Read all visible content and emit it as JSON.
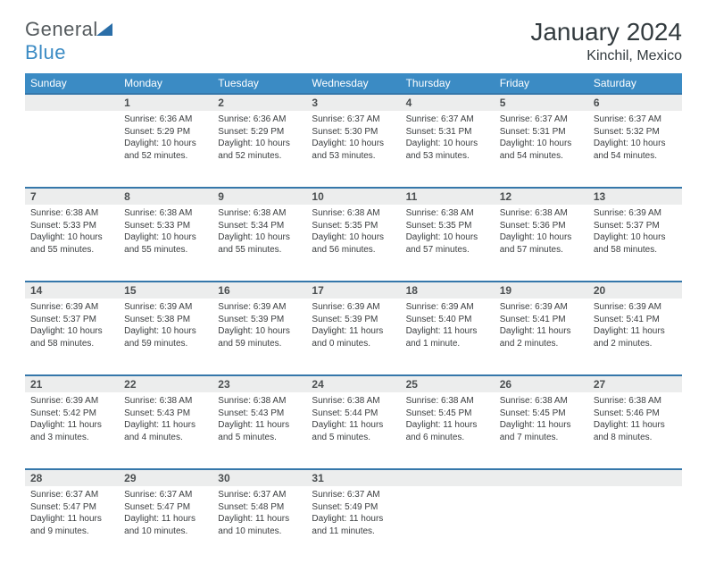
{
  "logo": {
    "text_gray": "General",
    "text_blue": "Blue"
  },
  "month_title": "January 2024",
  "location": "Kinchil, Mexico",
  "colors": {
    "header_bg": "#3b8bc4",
    "header_text": "#ffffff",
    "row_divider": "#3577aa",
    "daynum_bg": "#eceded",
    "text_dark": "#3a3d3f",
    "title_color": "#333b3f"
  },
  "day_headers": [
    "Sunday",
    "Monday",
    "Tuesday",
    "Wednesday",
    "Thursday",
    "Friday",
    "Saturday"
  ],
  "weeks": [
    [
      null,
      {
        "n": "1",
        "sr": "6:36 AM",
        "ss": "5:29 PM",
        "dl": "10 hours and 52 minutes."
      },
      {
        "n": "2",
        "sr": "6:36 AM",
        "ss": "5:29 PM",
        "dl": "10 hours and 52 minutes."
      },
      {
        "n": "3",
        "sr": "6:37 AM",
        "ss": "5:30 PM",
        "dl": "10 hours and 53 minutes."
      },
      {
        "n": "4",
        "sr": "6:37 AM",
        "ss": "5:31 PM",
        "dl": "10 hours and 53 minutes."
      },
      {
        "n": "5",
        "sr": "6:37 AM",
        "ss": "5:31 PM",
        "dl": "10 hours and 54 minutes."
      },
      {
        "n": "6",
        "sr": "6:37 AM",
        "ss": "5:32 PM",
        "dl": "10 hours and 54 minutes."
      }
    ],
    [
      {
        "n": "7",
        "sr": "6:38 AM",
        "ss": "5:33 PM",
        "dl": "10 hours and 55 minutes."
      },
      {
        "n": "8",
        "sr": "6:38 AM",
        "ss": "5:33 PM",
        "dl": "10 hours and 55 minutes."
      },
      {
        "n": "9",
        "sr": "6:38 AM",
        "ss": "5:34 PM",
        "dl": "10 hours and 55 minutes."
      },
      {
        "n": "10",
        "sr": "6:38 AM",
        "ss": "5:35 PM",
        "dl": "10 hours and 56 minutes."
      },
      {
        "n": "11",
        "sr": "6:38 AM",
        "ss": "5:35 PM",
        "dl": "10 hours and 57 minutes."
      },
      {
        "n": "12",
        "sr": "6:38 AM",
        "ss": "5:36 PM",
        "dl": "10 hours and 57 minutes."
      },
      {
        "n": "13",
        "sr": "6:39 AM",
        "ss": "5:37 PM",
        "dl": "10 hours and 58 minutes."
      }
    ],
    [
      {
        "n": "14",
        "sr": "6:39 AM",
        "ss": "5:37 PM",
        "dl": "10 hours and 58 minutes."
      },
      {
        "n": "15",
        "sr": "6:39 AM",
        "ss": "5:38 PM",
        "dl": "10 hours and 59 minutes."
      },
      {
        "n": "16",
        "sr": "6:39 AM",
        "ss": "5:39 PM",
        "dl": "10 hours and 59 minutes."
      },
      {
        "n": "17",
        "sr": "6:39 AM",
        "ss": "5:39 PM",
        "dl": "11 hours and 0 minutes."
      },
      {
        "n": "18",
        "sr": "6:39 AM",
        "ss": "5:40 PM",
        "dl": "11 hours and 1 minute."
      },
      {
        "n": "19",
        "sr": "6:39 AM",
        "ss": "5:41 PM",
        "dl": "11 hours and 2 minutes."
      },
      {
        "n": "20",
        "sr": "6:39 AM",
        "ss": "5:41 PM",
        "dl": "11 hours and 2 minutes."
      }
    ],
    [
      {
        "n": "21",
        "sr": "6:39 AM",
        "ss": "5:42 PM",
        "dl": "11 hours and 3 minutes."
      },
      {
        "n": "22",
        "sr": "6:38 AM",
        "ss": "5:43 PM",
        "dl": "11 hours and 4 minutes."
      },
      {
        "n": "23",
        "sr": "6:38 AM",
        "ss": "5:43 PM",
        "dl": "11 hours and 5 minutes."
      },
      {
        "n": "24",
        "sr": "6:38 AM",
        "ss": "5:44 PM",
        "dl": "11 hours and 5 minutes."
      },
      {
        "n": "25",
        "sr": "6:38 AM",
        "ss": "5:45 PM",
        "dl": "11 hours and 6 minutes."
      },
      {
        "n": "26",
        "sr": "6:38 AM",
        "ss": "5:45 PM",
        "dl": "11 hours and 7 minutes."
      },
      {
        "n": "27",
        "sr": "6:38 AM",
        "ss": "5:46 PM",
        "dl": "11 hours and 8 minutes."
      }
    ],
    [
      {
        "n": "28",
        "sr": "6:37 AM",
        "ss": "5:47 PM",
        "dl": "11 hours and 9 minutes."
      },
      {
        "n": "29",
        "sr": "6:37 AM",
        "ss": "5:47 PM",
        "dl": "11 hours and 10 minutes."
      },
      {
        "n": "30",
        "sr": "6:37 AM",
        "ss": "5:48 PM",
        "dl": "11 hours and 10 minutes."
      },
      {
        "n": "31",
        "sr": "6:37 AM",
        "ss": "5:49 PM",
        "dl": "11 hours and 11 minutes."
      },
      null,
      null,
      null
    ]
  ],
  "labels": {
    "sunrise": "Sunrise:",
    "sunset": "Sunset:",
    "daylight": "Daylight:"
  }
}
